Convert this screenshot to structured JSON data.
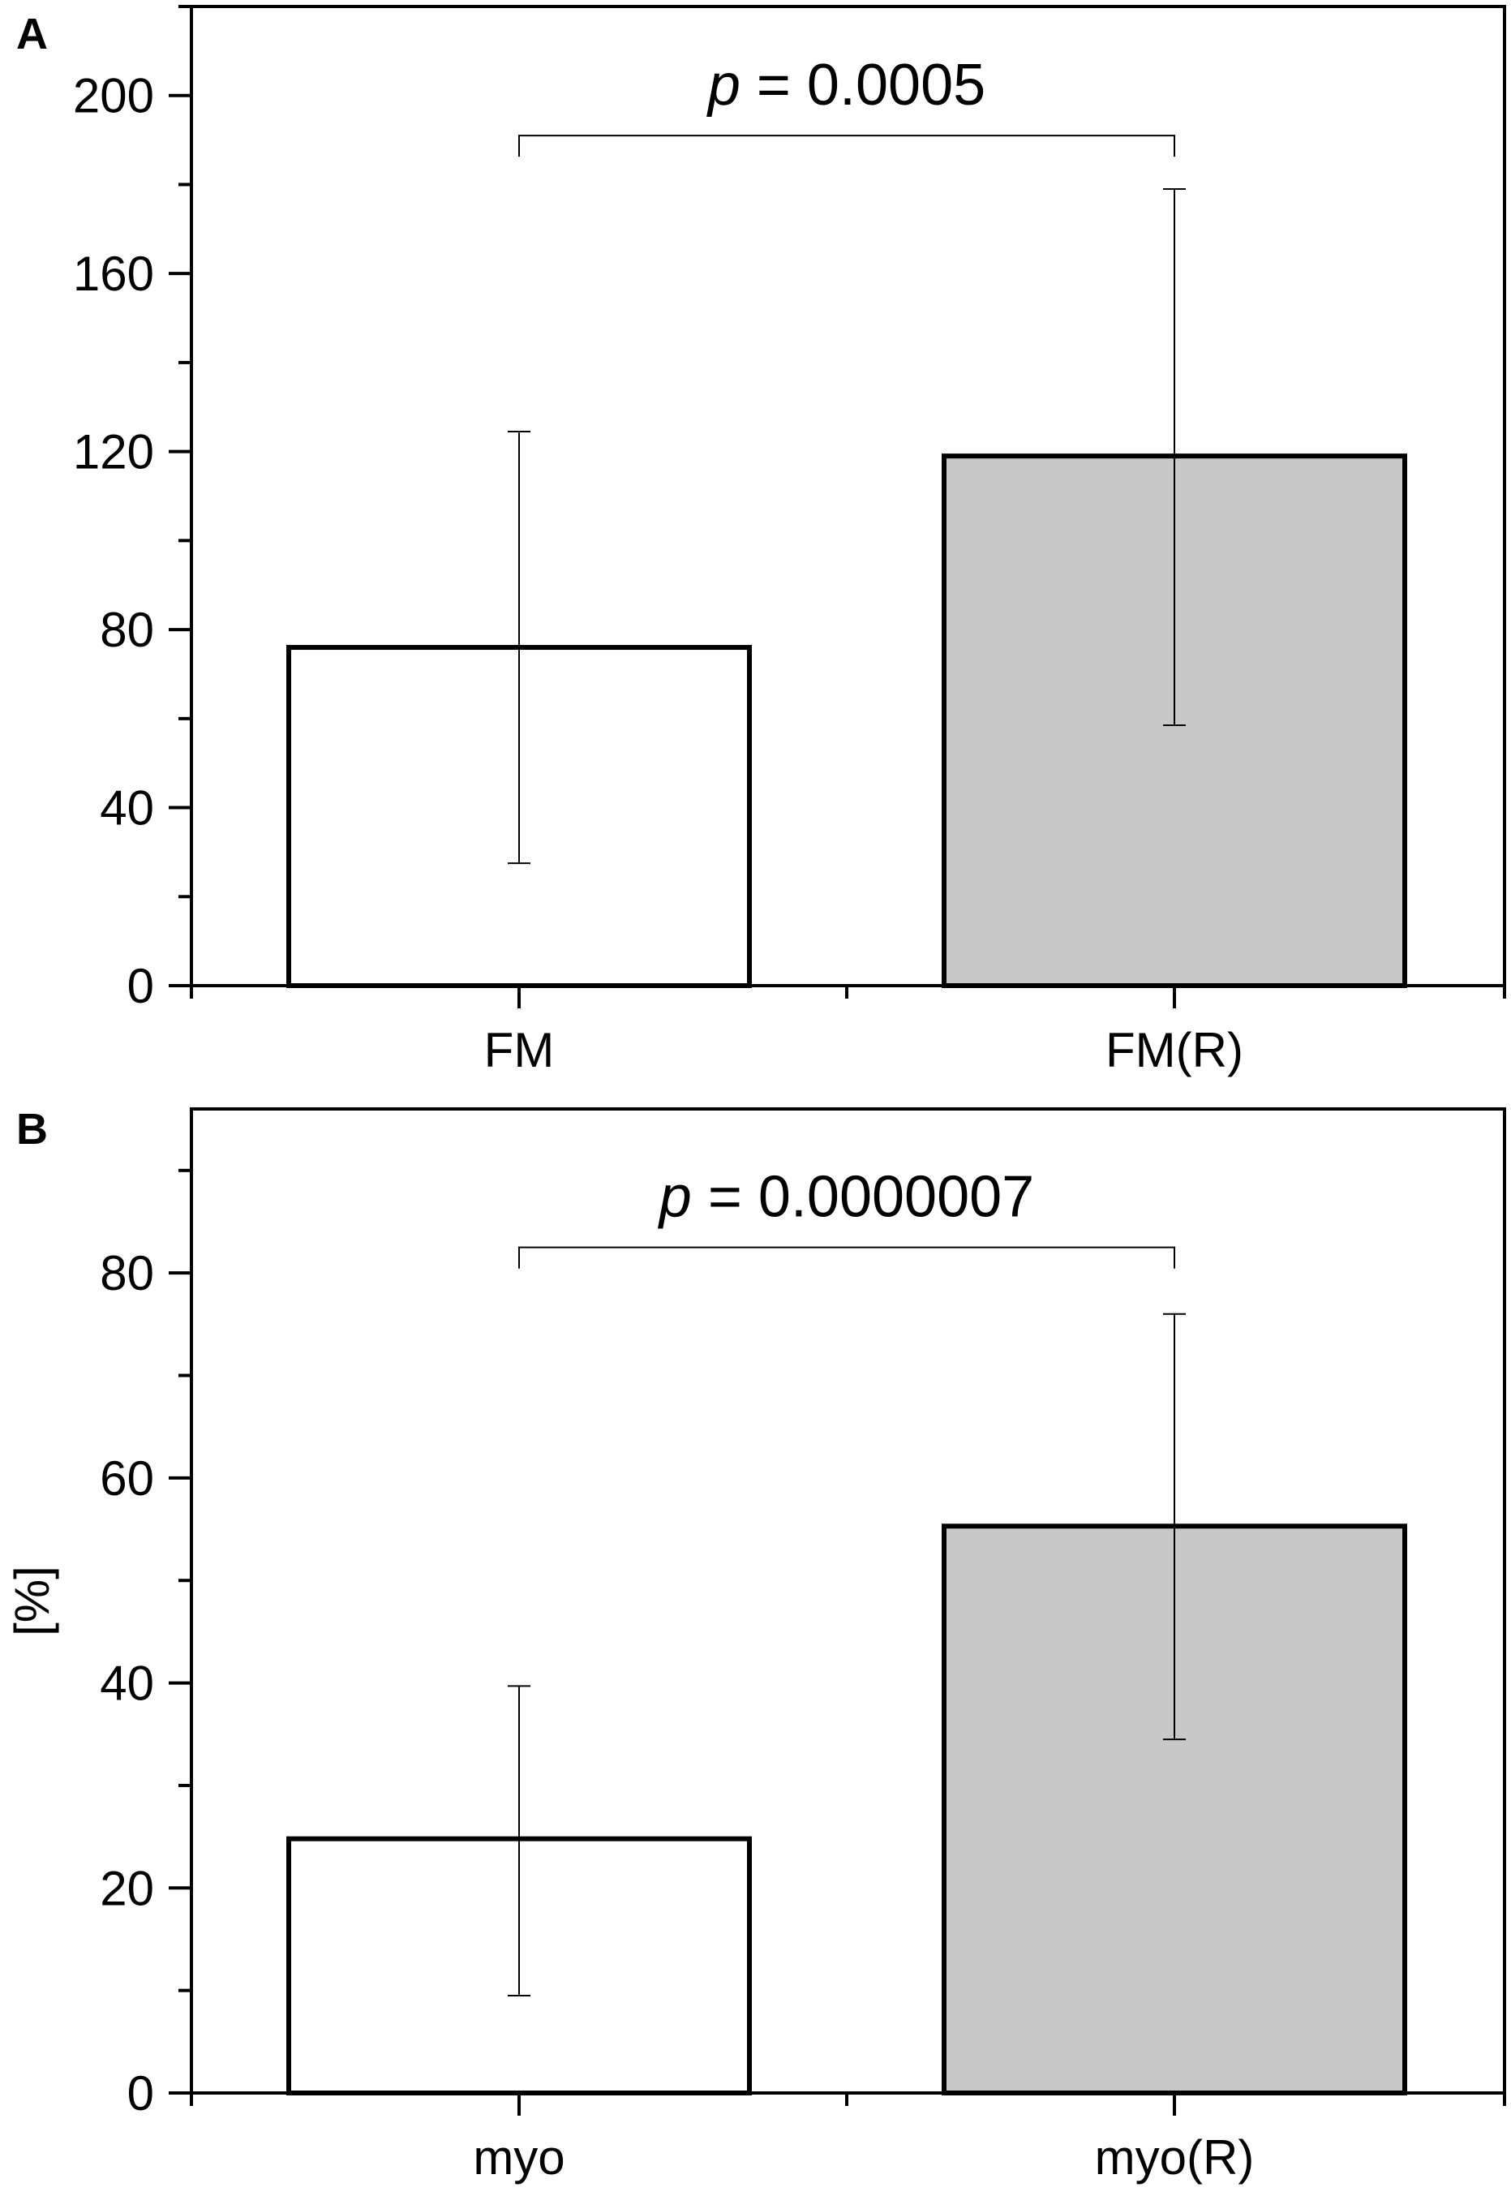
{
  "chart_data": [
    {
      "type": "bar",
      "panel_label": "A",
      "categories": [
        "FM",
        "FM(R)"
      ],
      "values": [
        76,
        119
      ],
      "error_lower": [
        27.5,
        58.5
      ],
      "error_upper": [
        124.5,
        179
      ],
      "bar_colors": [
        "#ffffff",
        "#c8c8c8"
      ],
      "ylabel": "",
      "ylim": [
        0,
        220
      ],
      "yticks": [
        0,
        40,
        80,
        120,
        160,
        200
      ],
      "annotation": {
        "p_symbol": "p",
        "text": " = 0.0005",
        "bracket_y": 191
      },
      "grid": false
    },
    {
      "type": "bar",
      "panel_label": "B",
      "categories": [
        "myo",
        "myo(R)"
      ],
      "values": [
        24.8,
        55.3
      ],
      "error_lower": [
        9.5,
        34.5
      ],
      "error_upper": [
        39.7,
        76
      ],
      "bar_colors": [
        "#ffffff",
        "#c8c8c8"
      ],
      "ylabel": "[%]",
      "ylim": [
        0,
        96
      ],
      "yticks": [
        0,
        20,
        40,
        60,
        80
      ],
      "annotation": {
        "p_symbol": "p",
        "text": " = 0.0000007",
        "bracket_y": 82.5
      },
      "grid": false
    }
  ]
}
